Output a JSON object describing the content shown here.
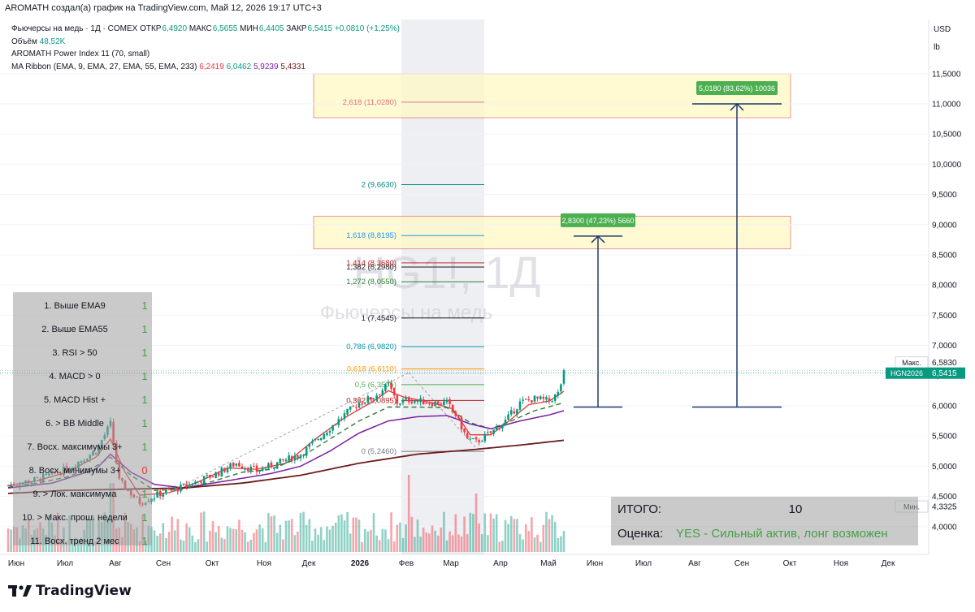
{
  "header": {
    "publisher_line": "AROMATH создал(а) график на TradingView.com, Май 12, 2026 19:17 UTC+3"
  },
  "legend": {
    "symbol_line": "Фьючерсы на медь · 1Д · COMEX",
    "ohlc": [
      {
        "label": "ОТКР",
        "value": "6,4920"
      },
      {
        "label": "МАКС",
        "value": "6,5655"
      },
      {
        "label": "МИН",
        "value": "6,4405"
      },
      {
        "label": "ЗАКР",
        "value": "6,5415"
      }
    ],
    "change": "+0,0810 (+1,25%)",
    "volume_label": "Объём",
    "volume_value": "48,52K",
    "indicator1": "AROMATH Power Index 11 (70, small)",
    "ribbon_label": "MA Ribbon (EMA, 9, EMA, 27, EMA, 55, EMA, 233)",
    "ribbon_values": [
      "6,2419",
      "6,0462",
      "5,9239",
      "5,4331"
    ]
  },
  "watermark": {
    "symbol": "HG1!, 1Д",
    "name": "Фьючерсы на медь"
  },
  "axis_units": {
    "currency": "USD",
    "unit": "lb"
  },
  "brand": {
    "logo_text": "TradingView"
  },
  "colors": {
    "up": "#089981",
    "down": "#f23645",
    "ema9": "#e53935",
    "ema27": "#2e7d32",
    "ema55": "#7b1fa2",
    "ema233": "#6d1b1b",
    "accent": "#089981"
  },
  "chart_data": {
    "type": "candlestick",
    "y_axis": {
      "min": 4.0,
      "max": 11.5,
      "ticks": [
        "4,0000",
        "4,5000",
        "5,0000",
        "5,5000",
        "6,0000",
        "6,5000",
        "7,0000",
        "7,5000",
        "8,0000",
        "8,5000",
        "9,0000",
        "9,5000",
        "10,0000",
        "10,5000",
        "11,0000",
        "11,5000"
      ]
    },
    "x_axis": {
      "ticks": [
        "Июн",
        "Июл",
        "Авг",
        "Сен",
        "Окт",
        "Ноя",
        "Дек",
        "2026",
        "Фев",
        "Мар",
        "Апр",
        "Май",
        "Июн",
        "Июл",
        "Авг",
        "Сен",
        "Окт",
        "Ноя",
        "Дек"
      ]
    },
    "price_labels": [
      {
        "label": "Макс.",
        "value": "6,5830",
        "price": 6.583
      },
      {
        "label": "HGN2026",
        "value": "6,5415",
        "price": 6.5415
      },
      {
        "label": "Мин.",
        "value": "4,3325",
        "price": 4.3325
      }
    ],
    "price_path": [
      [
        0,
        4.68
      ],
      [
        10,
        4.78
      ],
      [
        20,
        4.95
      ],
      [
        30,
        5.25
      ],
      [
        35,
        5.7
      ],
      [
        38,
        4.75
      ],
      [
        42,
        4.55
      ],
      [
        45,
        4.4
      ],
      [
        52,
        4.55
      ],
      [
        60,
        4.66
      ],
      [
        70,
        4.85
      ],
      [
        78,
        5.05
      ],
      [
        85,
        4.92
      ],
      [
        92,
        5.05
      ],
      [
        100,
        5.2
      ],
      [
        108,
        5.55
      ],
      [
        115,
        5.85
      ],
      [
        120,
        6.05
      ],
      [
        125,
        6.15
      ],
      [
        130,
        6.35
      ],
      [
        133,
        6.05
      ],
      [
        137,
        6.1
      ],
      [
        145,
        6.05
      ],
      [
        150,
        6.05
      ],
      [
        153,
        5.85
      ],
      [
        157,
        5.45
      ],
      [
        160,
        5.4
      ],
      [
        165,
        5.55
      ],
      [
        170,
        5.75
      ],
      [
        175,
        6.05
      ],
      [
        180,
        6.12
      ],
      [
        185,
        6.08
      ],
      [
        188,
        6.2
      ],
      [
        190,
        6.54
      ]
    ],
    "moving_averages": [
      {
        "name": "EMA 9",
        "value": "6,2419",
        "points": [
          [
            0,
            4.68
          ],
          [
            10,
            4.76
          ],
          [
            20,
            4.9
          ],
          [
            30,
            5.15
          ],
          [
            35,
            5.45
          ],
          [
            40,
            4.9
          ],
          [
            45,
            4.52
          ],
          [
            55,
            4.56
          ],
          [
            65,
            4.74
          ],
          [
            75,
            4.97
          ],
          [
            85,
            4.95
          ],
          [
            95,
            5.05
          ],
          [
            105,
            5.45
          ],
          [
            115,
            5.8
          ],
          [
            125,
            6.08
          ],
          [
            130,
            6.25
          ],
          [
            135,
            6.15
          ],
          [
            145,
            6.05
          ],
          [
            152,
            5.95
          ],
          [
            158,
            5.52
          ],
          [
            165,
            5.52
          ],
          [
            170,
            5.7
          ],
          [
            178,
            6.02
          ],
          [
            185,
            6.08
          ],
          [
            190,
            6.24
          ]
        ]
      },
      {
        "name": "EMA 27",
        "value": "6,0462",
        "points": [
          [
            0,
            4.65
          ],
          [
            10,
            4.72
          ],
          [
            20,
            4.82
          ],
          [
            30,
            5.0
          ],
          [
            35,
            5.15
          ],
          [
            42,
            4.85
          ],
          [
            50,
            4.6
          ],
          [
            60,
            4.62
          ],
          [
            70,
            4.75
          ],
          [
            80,
            4.9
          ],
          [
            90,
            4.95
          ],
          [
            100,
            5.15
          ],
          [
            110,
            5.45
          ],
          [
            120,
            5.75
          ],
          [
            130,
            5.98
          ],
          [
            140,
            5.98
          ],
          [
            150,
            5.97
          ],
          [
            158,
            5.72
          ],
          [
            165,
            5.62
          ],
          [
            172,
            5.75
          ],
          [
            180,
            5.92
          ],
          [
            190,
            6.05
          ]
        ]
      },
      {
        "name": "EMA 55",
        "value": "5,9239",
        "points": [
          [
            0,
            4.64
          ],
          [
            15,
            4.72
          ],
          [
            30,
            4.95
          ],
          [
            35,
            5.2
          ],
          [
            42,
            4.9
          ],
          [
            50,
            4.7
          ],
          [
            60,
            4.64
          ],
          [
            75,
            4.76
          ],
          [
            90,
            4.88
          ],
          [
            100,
            5.0
          ],
          [
            110,
            5.25
          ],
          [
            120,
            5.55
          ],
          [
            130,
            5.75
          ],
          [
            140,
            5.82
          ],
          [
            150,
            5.84
          ],
          [
            158,
            5.7
          ],
          [
            165,
            5.62
          ],
          [
            175,
            5.75
          ],
          [
            185,
            5.85
          ],
          [
            190,
            5.92
          ]
        ]
      },
      {
        "name": "EMA 233",
        "value": "5,4331",
        "points": [
          [
            0,
            4.55
          ],
          [
            20,
            4.6
          ],
          [
            40,
            4.62
          ],
          [
            60,
            4.64
          ],
          [
            80,
            4.72
          ],
          [
            100,
            4.85
          ],
          [
            120,
            5.05
          ],
          [
            140,
            5.2
          ],
          [
            160,
            5.28
          ],
          [
            175,
            5.35
          ],
          [
            190,
            5.43
          ]
        ]
      }
    ],
    "fib_levels": [
      {
        "label": "0",
        "value": "5,2460",
        "price": 5.246
      },
      {
        "label": "0,382",
        "value": "6,0895",
        "price": 6.0895
      },
      {
        "label": "0,5",
        "value": "6,3505",
        "price": 6.3505
      },
      {
        "label": "0,618",
        "value": "6,6110",
        "price": 6.611
      },
      {
        "label": "0,786",
        "value": "6,9820",
        "price": 6.982
      },
      {
        "label": "1",
        "value": "7,4545",
        "price": 7.4545
      },
      {
        "label": "1,272",
        "value": "8,0550",
        "price": 8.055
      },
      {
        "label": "1,382",
        "value": "8,2980",
        "price": 8.298
      },
      {
        "label": "1,414",
        "value": "8,3680",
        "price": 8.368
      },
      {
        "label": "1,618",
        "value": "8,8195",
        "price": 8.8195
      },
      {
        "label": "2",
        "value": "9,6630",
        "price": 9.663
      },
      {
        "label": "2,618",
        "value": "11,0280",
        "price": 11.028
      }
    ],
    "targets": [
      {
        "text": "2,8300 (47,23%) 5660",
        "from": 5.98,
        "to": 8.81
      },
      {
        "text": "5,0180 (83,62%) 10036",
        "from": 5.98,
        "to": 11.0
      }
    ],
    "target_zones": [
      {
        "from": 8.6,
        "to": 9.14
      },
      {
        "from": 10.77,
        "to": 11.5
      }
    ]
  },
  "checklist": {
    "items": [
      {
        "label": "1. Выше EMA9",
        "score": "1"
      },
      {
        "label": "2. Выше EMA55",
        "score": "1"
      },
      {
        "label": "3. RSI > 50",
        "score": "1"
      },
      {
        "label": "4. MACD > 0",
        "score": "1"
      },
      {
        "label": "5. MACD Hist +",
        "score": "1"
      },
      {
        "label": "6. > BB Middle",
        "score": "1"
      },
      {
        "label": "7. Восх. максимумы 3+",
        "score": "1"
      },
      {
        "label": "8. Восх. минимумы 3+",
        "score": "0"
      },
      {
        "label": "9. > Лок. максимума",
        "score": "1"
      },
      {
        "label": "10. > Макс. прош. недели",
        "score": "1"
      },
      {
        "label": "11. Восх. тренд 2 мес",
        "score": "1"
      }
    ]
  },
  "summary": {
    "total_label": "ИТОГО:",
    "total_value": "10",
    "rating_label": "Оценка:",
    "rating_value": "YES - Сильный актив, лонг возможен"
  }
}
